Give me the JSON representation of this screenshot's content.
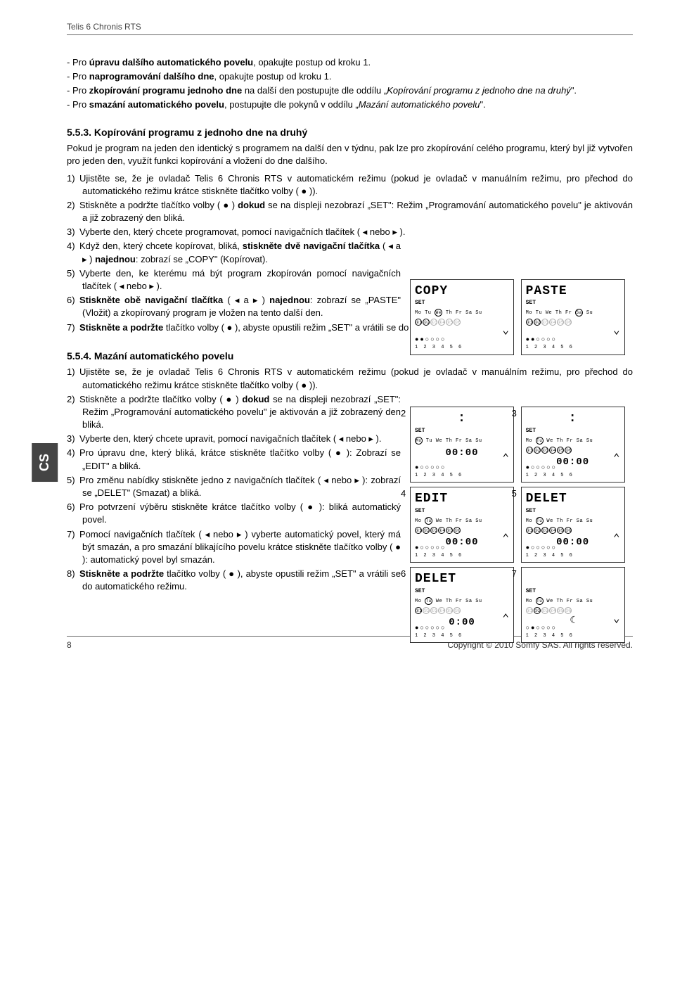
{
  "header": {
    "product": "Telis 6 Chronis RTS",
    "lang_tab": "CS",
    "page_num": "8",
    "copyright": "Copyright © 2010 Somfy SAS. All rights reserved."
  },
  "intro": {
    "l1_a": "- Pro ",
    "l1_b": "úpravu dalšího automatického povelu",
    "l1_c": ", opakujte postup od kroku 1.",
    "l2_a": "- Pro ",
    "l2_b": "naprogramování dalšího dne",
    "l2_c": ", opakujte postup od kroku 1.",
    "l3_a": "- Pro ",
    "l3_b": "zkopírování programu jednoho dne",
    "l3_c": " na další den postupujte dle oddílu „",
    "l3_d": "Kopírování programu z jednoho dne na druhý",
    "l3_e": "\".",
    "l4_a": "- Pro ",
    "l4_b": "smazání automatického povelu",
    "l4_c": ", postupujte dle pokynů v oddílu „",
    "l4_d": "Mazání automatického povelu",
    "l4_e": "\"."
  },
  "s553": {
    "title": "5.5.3. Kopírování programu z jednoho dne na druhý",
    "body": "Pokud je program na jeden den identický s programem na další den v týdnu, pak lze pro zkopírování celého programu, který byl již vytvořen pro jeden den, využít funkci kopírování a vložení do dne dalšího.",
    "li1": "Ujistěte se, že je ovladač Telis 6 Chronis RTS v automatickém režimu (pokud je ovladač v manuálním režimu, pro přechod do automatického režimu krátce stiskněte tlačítko volby ( ● )).",
    "li2_a": "Stiskněte a podržte tlačítko volby ( ● ) ",
    "li2_b": "dokud",
    "li2_c": " se na displeji nezobrazí „SET\": Režim „Programování automatického povelu\" je aktivován a již zobrazený den bliká.",
    "li3": "Vyberte den, který chcete programovat, pomocí navigačních tlačítek ( ◂ nebo ▸ ).",
    "li4_a": "Když den, který chcete kopírovat, bliká, ",
    "li4_b": "stiskněte dvě navigační tlačítka",
    "li4_c": " ( ◂ a ▸ ) ",
    "li4_d": "najednou",
    "li4_e": ": zobrazí se „COPY\" (Kopírovat).",
    "li5": "Vyberte den, ke kterému má být program zkopírován pomocí navigačních tlačítek ( ◂ nebo ▸ ).",
    "li6_a": "Stiskněte obě navigační tlačítka",
    "li6_b": " ( ◂ a ▸ ) ",
    "li6_c": "najednou",
    "li6_d": ": zobrazí se „PASTE\" (Vložit) a zkopírovaný program je vložen na tento další den.",
    "li7_a": "Stiskněte a podržte",
    "li7_b": " tlačítko volby ( ● ), abyste opustili režim „SET\" a vrátili se do automatického režimu."
  },
  "s554": {
    "title": "5.5.4. Mazání automatického povelu",
    "li1": "Ujistěte se, že je ovladač Telis 6 Chronis RTS v automatickém režimu (pokud je ovladač v manuálním režimu, pro přechod do automatického režimu krátce stiskněte tlačítko volby ( ● )).",
    "li2_a": "Stiskněte a podržte tlačítko volby ( ● ) ",
    "li2_b": "dokud",
    "li2_c": " se na displeji nezobrazí „SET\": Režim „Programování automatického povelu\" je aktivován a již zobrazený den bliká.",
    "li3": "Vyberte den, který chcete upravit, pomocí navigačních tlačítek ( ◂ nebo ▸ ).",
    "li4": "Pro úpravu dne, který bliká, krátce stiskněte tlačítko volby ( ● ): Zobrazí se „EDIT\" a bliká.",
    "li5": "Pro změnu nabídky stiskněte jedno z navigačních tlačítek ( ◂ nebo ▸ ): zobrazí se „DELET\" (Smazat) a bliká.",
    "li6": "Pro potvrzení výběru stiskněte krátce tlačítko volby ( ● ): bliká automatický povel.",
    "li7": "Pomocí navigačních tlačítek ( ◂ nebo ▸ ) vyberte automatický povel, který má být smazán, a pro smazání blikajícího povelu krátce stiskněte tlačítko volby ( ● ): automatický povel byl smazán.",
    "li8_a": "Stiskněte a podržte",
    "li8_b": " tlačítko volby ( ● ), abyste opustili režim „SET\" a vrátili se do automatického režimu."
  },
  "lcd": {
    "copy": "COPY",
    "paste": "PASTE",
    "edit": "EDIT",
    "delet": "DELET",
    "set": "SET",
    "days": "Mo Tu We Th Fr Sa Su",
    "slots_all": "●1 ●2 ●3 ●4 ●5 ●6",
    "nums": "1 2 3 4 5 6",
    "time0": "00:00",
    "colon": ":"
  }
}
